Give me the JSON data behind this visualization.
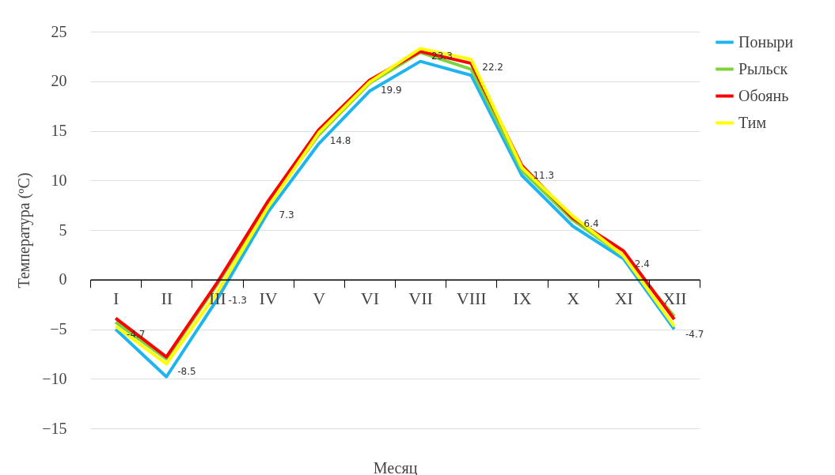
{
  "chart_data": {
    "type": "line",
    "xlabel": "Месяц",
    "ylabel": "Температура (ºC)",
    "categories": [
      "I",
      "II",
      "III",
      "IV",
      "V",
      "VI",
      "VII",
      "VIII",
      "IX",
      "X",
      "XI",
      "XII"
    ],
    "series": [
      {
        "name": "Поныри",
        "color": "#1fb4f0",
        "values": [
          -5.0,
          -9.8,
          -2.0,
          6.8,
          13.7,
          19.0,
          22.0,
          20.6,
          10.5,
          5.4,
          2.1,
          -5.0
        ]
      },
      {
        "name": "Рыльск",
        "color": "#7cd33c",
        "values": [
          -4.3,
          -8.0,
          -0.5,
          7.6,
          14.6,
          19.8,
          22.9,
          21.2,
          11.0,
          6.0,
          2.4,
          -3.7
        ]
      },
      {
        "name": "Обоянь",
        "color": "#ff0000",
        "values": [
          -3.9,
          -7.8,
          -0.3,
          7.9,
          15.1,
          20.1,
          23.0,
          21.8,
          11.5,
          6.2,
          2.9,
          -4.0
        ]
      },
      {
        "name": "Тим",
        "color": "#ffff00",
        "values": [
          -4.7,
          -8.5,
          -1.3,
          7.3,
          14.8,
          19.9,
          23.3,
          22.2,
          11.3,
          6.4,
          2.4,
          -4.7
        ],
        "value_labels": [
          "-4.7",
          "-8.5",
          "-1.3",
          "7.3",
          "14.8",
          "19.9",
          "23.3",
          "22.2",
          "11.3",
          "6.4",
          "2.4",
          "-4.7"
        ]
      }
    ],
    "ylim": [
      -15,
      25
    ],
    "yticks": [
      -15,
      -10,
      -5,
      0,
      5,
      10,
      15,
      20,
      25
    ],
    "grid": "y",
    "legend": "right"
  }
}
